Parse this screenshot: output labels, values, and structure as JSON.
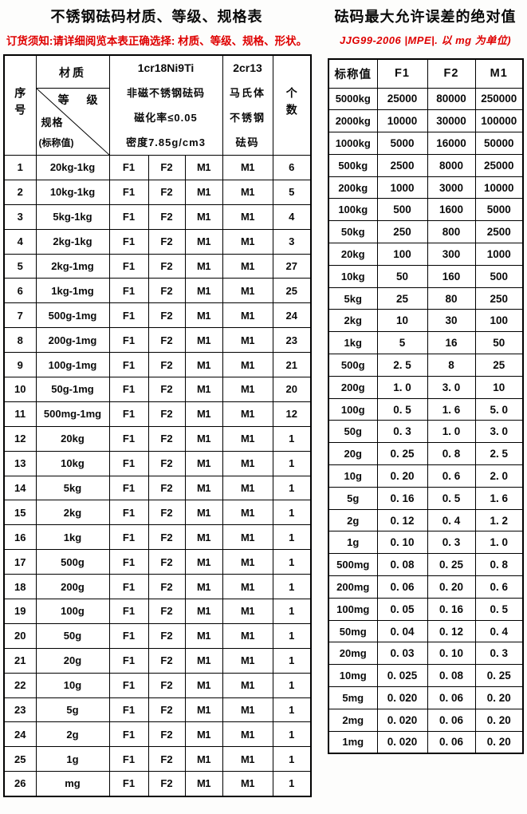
{
  "colors": {
    "accent_red": "#df0000",
    "border": "#000000",
    "background": "#ffffff"
  },
  "left_table": {
    "title": "不锈钢砝码材质、等级、规格表",
    "notice": "订货须知:请详细阅览本表正确选择: 材质、等级、规格、形状。",
    "header": {
      "serial": "序号",
      "corner": {
        "material": "材质",
        "grade": "等 级",
        "spec": "规格",
        "nominal": "(标称值)"
      },
      "group1": [
        "1cr18Ni9Ti",
        "非磁不锈钢砝码",
        "磁化率≤0.05",
        "密度7.85g/cm3"
      ],
      "group2": [
        "2cr13",
        "马氏体",
        "不锈钢",
        "砝码"
      ],
      "count": "个数"
    },
    "rows": [
      {
        "no": "1",
        "spec": "20kg-1kg",
        "grades": [
          "F1",
          "F2",
          "M1"
        ],
        "m1": "M1",
        "count": "6"
      },
      {
        "no": "2",
        "spec": "10kg-1kg",
        "grades": [
          "F1",
          "F2",
          "M1"
        ],
        "m1": "M1",
        "count": "5"
      },
      {
        "no": "3",
        "spec": "5kg-1kg",
        "grades": [
          "F1",
          "F2",
          "M1"
        ],
        "m1": "M1",
        "count": "4"
      },
      {
        "no": "4",
        "spec": "2kg-1kg",
        "grades": [
          "F1",
          "F2",
          "M1"
        ],
        "m1": "M1",
        "count": "3"
      },
      {
        "no": "5",
        "spec": "2kg-1mg",
        "grades": [
          "F1",
          "F2",
          "M1"
        ],
        "m1": "M1",
        "count": "27"
      },
      {
        "no": "6",
        "spec": "1kg-1mg",
        "grades": [
          "F1",
          "F2",
          "M1"
        ],
        "m1": "M1",
        "count": "25"
      },
      {
        "no": "7",
        "spec": "500g-1mg",
        "grades": [
          "F1",
          "F2",
          "M1"
        ],
        "m1": "M1",
        "count": "24"
      },
      {
        "no": "8",
        "spec": "200g-1mg",
        "grades": [
          "F1",
          "F2",
          "M1"
        ],
        "m1": "M1",
        "count": "23"
      },
      {
        "no": "9",
        "spec": "100g-1mg",
        "grades": [
          "F1",
          "F2",
          "M1"
        ],
        "m1": "M1",
        "count": "21"
      },
      {
        "no": "10",
        "spec": "50g-1mg",
        "grades": [
          "F1",
          "F2",
          "M1"
        ],
        "m1": "M1",
        "count": "20"
      },
      {
        "no": "11",
        "spec": "500mg-1mg",
        "grades": [
          "F1",
          "F2",
          "M1"
        ],
        "m1": "M1",
        "count": "12"
      },
      {
        "no": "12",
        "spec": "20kg",
        "grades": [
          "F1",
          "F2",
          "M1"
        ],
        "m1": "M1",
        "count": "1"
      },
      {
        "no": "13",
        "spec": "10kg",
        "grades": [
          "F1",
          "F2",
          "M1"
        ],
        "m1": "M1",
        "count": "1"
      },
      {
        "no": "14",
        "spec": "5kg",
        "grades": [
          "F1",
          "F2",
          "M1"
        ],
        "m1": "M1",
        "count": "1"
      },
      {
        "no": "15",
        "spec": "2kg",
        "grades": [
          "F1",
          "F2",
          "M1"
        ],
        "m1": "M1",
        "count": "1"
      },
      {
        "no": "16",
        "spec": "1kg",
        "grades": [
          "F1",
          "F2",
          "M1"
        ],
        "m1": "M1",
        "count": "1"
      },
      {
        "no": "17",
        "spec": "500g",
        "grades": [
          "F1",
          "F2",
          "M1"
        ],
        "m1": "M1",
        "count": "1"
      },
      {
        "no": "18",
        "spec": "200g",
        "grades": [
          "F1",
          "F2",
          "M1"
        ],
        "m1": "M1",
        "count": "1"
      },
      {
        "no": "19",
        "spec": "100g",
        "grades": [
          "F1",
          "F2",
          "M1"
        ],
        "m1": "M1",
        "count": "1"
      },
      {
        "no": "20",
        "spec": "50g",
        "grades": [
          "F1",
          "F2",
          "M1"
        ],
        "m1": "M1",
        "count": "1"
      },
      {
        "no": "21",
        "spec": "20g",
        "grades": [
          "F1",
          "F2",
          "M1"
        ],
        "m1": "M1",
        "count": "1"
      },
      {
        "no": "22",
        "spec": "10g",
        "grades": [
          "F1",
          "F2",
          "M1"
        ],
        "m1": "M1",
        "count": "1"
      },
      {
        "no": "23",
        "spec": "5g",
        "grades": [
          "F1",
          "F2",
          "M1"
        ],
        "m1": "M1",
        "count": "1"
      },
      {
        "no": "24",
        "spec": "2g",
        "grades": [
          "F1",
          "F2",
          "M1"
        ],
        "m1": "M1",
        "count": "1"
      },
      {
        "no": "25",
        "spec": "1g",
        "grades": [
          "F1",
          "F2",
          "M1"
        ],
        "m1": "M1",
        "count": "1"
      },
      {
        "no": "26",
        "spec": "mg",
        "grades": [
          "F1",
          "F2",
          "M1"
        ],
        "m1": "M1",
        "count": "1"
      }
    ]
  },
  "right_table": {
    "title": "砝码最大允许误差的绝对值",
    "notice": "JJG99-2006 |MPE|. 以 mg 为单位)",
    "headers": [
      "标称值",
      "F1",
      "F2",
      "M1"
    ],
    "rows": [
      [
        "5000kg",
        "25000",
        "80000",
        "250000"
      ],
      [
        "2000kg",
        "10000",
        "30000",
        "100000"
      ],
      [
        "1000kg",
        "5000",
        "16000",
        "50000"
      ],
      [
        "500kg",
        "2500",
        "8000",
        "25000"
      ],
      [
        "200kg",
        "1000",
        "3000",
        "10000"
      ],
      [
        "100kg",
        "500",
        "1600",
        "5000"
      ],
      [
        "50kg",
        "250",
        "800",
        "2500"
      ],
      [
        "20kg",
        "100",
        "300",
        "1000"
      ],
      [
        "10kg",
        "50",
        "160",
        "500"
      ],
      [
        "5kg",
        "25",
        "80",
        "250"
      ],
      [
        "2kg",
        "10",
        "30",
        "100"
      ],
      [
        "1kg",
        "5",
        "16",
        "50"
      ],
      [
        "500g",
        "2. 5",
        "8",
        "25"
      ],
      [
        "200g",
        "1. 0",
        "3. 0",
        "10"
      ],
      [
        "100g",
        "0. 5",
        "1. 6",
        "5. 0"
      ],
      [
        "50g",
        "0. 3",
        "1. 0",
        "3. 0"
      ],
      [
        "20g",
        "0. 25",
        "0. 8",
        "2. 5"
      ],
      [
        "10g",
        "0. 20",
        "0. 6",
        "2. 0"
      ],
      [
        "5g",
        "0. 16",
        "0. 5",
        "1. 6"
      ],
      [
        "2g",
        "0. 12",
        "0. 4",
        "1. 2"
      ],
      [
        "1g",
        "0. 10",
        "0. 3",
        "1. 0"
      ],
      [
        "500mg",
        "0. 08",
        "0. 25",
        "0. 8"
      ],
      [
        "200mg",
        "0. 06",
        "0. 20",
        "0. 6"
      ],
      [
        "100mg",
        "0. 05",
        "0. 16",
        "0. 5"
      ],
      [
        "50mg",
        "0. 04",
        "0. 12",
        "0. 4"
      ],
      [
        "20mg",
        "0. 03",
        "0. 10",
        "0. 3"
      ],
      [
        "10mg",
        "0. 025",
        "0. 08",
        "0. 25"
      ],
      [
        "5mg",
        "0. 020",
        "0. 06",
        "0. 20"
      ],
      [
        "2mg",
        "0. 020",
        "0. 06",
        "0. 20"
      ],
      [
        "1mg",
        "0. 020",
        "0. 06",
        "0. 20"
      ]
    ]
  }
}
